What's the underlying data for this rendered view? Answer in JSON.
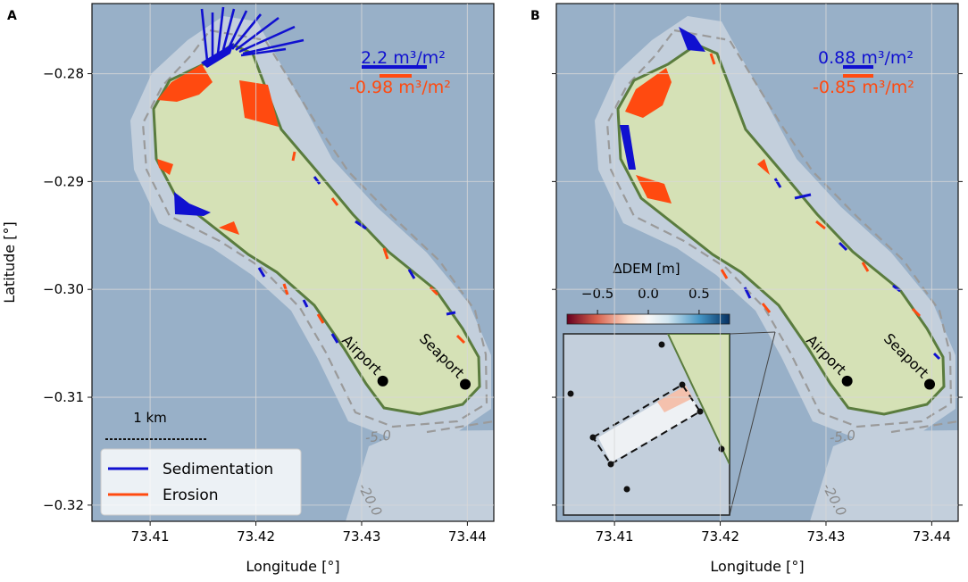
{
  "chart_data": [
    {
      "panel": "A",
      "type": "map",
      "xlabel": "Longitude [°]",
      "ylabel": "Latitude [°]",
      "xlim": [
        73.4045,
        73.4425
      ],
      "ylim": [
        -0.3215,
        -0.2735
      ],
      "x_ticks": [
        {
          "v": 73.41,
          "label": "73.41"
        },
        {
          "v": 73.42,
          "label": "73.42"
        },
        {
          "v": 73.43,
          "label": "73.43"
        },
        {
          "v": 73.44,
          "label": "73.44"
        }
      ],
      "y_ticks": [
        {
          "v": -0.28,
          "label": "−0.28"
        },
        {
          "v": -0.29,
          "label": "−0.29"
        },
        {
          "v": -0.3,
          "label": "−0.30"
        },
        {
          "v": -0.31,
          "label": "−0.31"
        },
        {
          "v": -0.32,
          "label": "−0.32"
        }
      ],
      "grid": true,
      "scale_sedimentation": {
        "value": "2.2",
        "unit": " m³/m²"
      },
      "scale_erosion": {
        "value": "-0.98",
        "unit": " m³/m²"
      },
      "scalebar_label": "1 km",
      "contour_labels": [
        "-5.0",
        "-20.0"
      ],
      "places": [
        {
          "name": "Airport",
          "lon": 73.432,
          "lat": -0.3085
        },
        {
          "name": "Seaport",
          "lon": 73.4398,
          "lat": -0.3088
        }
      ],
      "legend": {
        "position": "lower-left",
        "entries": [
          {
            "label": "Sedimentation",
            "color": "#1010d0"
          },
          {
            "label": "Erosion",
            "color": "#ff4a10"
          }
        ]
      }
    },
    {
      "panel": "B",
      "type": "map",
      "xlabel": "Longitude [°]",
      "xlim": [
        73.4045,
        73.4425
      ],
      "ylim": [
        -0.3215,
        -0.2735
      ],
      "x_ticks": [
        {
          "v": 73.41,
          "label": "73.41"
        },
        {
          "v": 73.42,
          "label": "73.42"
        },
        {
          "v": 73.43,
          "label": "73.43"
        },
        {
          "v": 73.44,
          "label": "73.44"
        }
      ],
      "grid": true,
      "scale_sedimentation": {
        "value": "0.88",
        "unit": " m³/m²"
      },
      "scale_erosion": {
        "value": "-0.85",
        "unit": " m³/m²"
      },
      "contour_labels": [
        "-5.0",
        "-20.0"
      ],
      "places": [
        {
          "name": "Airport",
          "lon": 73.432,
          "lat": -0.3085
        },
        {
          "name": "Seaport",
          "lon": 73.4398,
          "lat": -0.3088
        }
      ],
      "colorbar": {
        "label": "ΔDEM [m]",
        "ticks": [
          {
            "v": -0.5,
            "label": "−0.5"
          },
          {
            "v": 0.0,
            "label": "0.0"
          },
          {
            "v": 0.5,
            "label": "0.5"
          }
        ],
        "range": [
          -0.8,
          0.8
        ],
        "colormap": "RdBu"
      }
    }
  ],
  "labels": {
    "panel_a": "A",
    "panel_b": "B"
  },
  "colors": {
    "ocean": "#98b0c8",
    "shelf": "#c3cfdc",
    "land": "#d5e1b6",
    "coast": "#5a7c3e",
    "sedimentation": "#1010d0",
    "erosion": "#ff4a10",
    "contour": "#9a9a9a"
  }
}
